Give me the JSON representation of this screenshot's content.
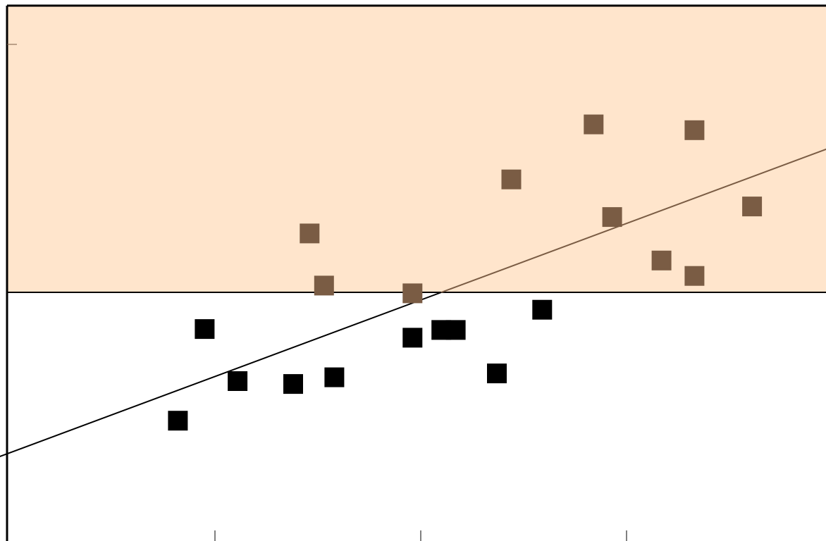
{
  "chart_data": {
    "type": "scatter",
    "title": "",
    "xlabel": "",
    "ylabel": "",
    "xlim": [
      -3,
      3
    ],
    "ylim": [
      -3,
      3
    ],
    "grid": false,
    "legend": "none",
    "threshold_y": 0,
    "colors": {
      "above_band": "#ffe5cc",
      "above_series": "#7a5c44",
      "below_series": "#000000",
      "axis": "#000000"
    },
    "trend_line": {
      "from": [
        -2.17,
        -1.8
      ],
      "to": [
        2.37,
        1.8
      ]
    },
    "series": [
      {
        "points": [
          [
            -0.54,
            0.61
          ],
          [
            -0.47,
            0.07
          ],
          [
            -0.04,
            -0.01
          ],
          [
            0.44,
            1.17
          ],
          [
            0.84,
            1.74
          ],
          [
            0.93,
            0.78
          ],
          [
            1.17,
            0.33
          ],
          [
            1.33,
            1.68
          ],
          [
            1.33,
            0.17
          ],
          [
            1.61,
            0.89
          ]
        ]
      },
      {
        "points": [
          [
            -1.05,
            -0.38
          ],
          [
            -1.18,
            -1.33
          ],
          [
            -0.89,
            -0.92
          ],
          [
            -0.62,
            -0.95
          ],
          [
            -0.42,
            -0.88
          ],
          [
            -0.04,
            -0.47
          ],
          [
            0.1,
            -0.39
          ],
          [
            0.17,
            -0.39
          ],
          [
            0.37,
            -0.84
          ],
          [
            0.59,
            -0.18
          ]
        ]
      }
    ]
  }
}
